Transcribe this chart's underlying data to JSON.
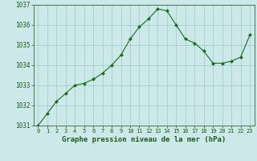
{
  "x": [
    0,
    1,
    2,
    3,
    4,
    5,
    6,
    7,
    8,
    9,
    10,
    11,
    12,
    13,
    14,
    15,
    16,
    17,
    18,
    19,
    20,
    21,
    22,
    23
  ],
  "y": [
    1031.0,
    1031.6,
    1032.2,
    1032.6,
    1033.0,
    1033.1,
    1033.3,
    1033.6,
    1034.0,
    1034.5,
    1035.3,
    1035.9,
    1036.3,
    1036.8,
    1036.7,
    1036.0,
    1035.3,
    1035.1,
    1034.7,
    1034.1,
    1034.1,
    1034.2,
    1034.4,
    1035.5
  ],
  "ylim": [
    1031,
    1037
  ],
  "xlim": [
    -0.5,
    23.5
  ],
  "yticks": [
    1031,
    1032,
    1033,
    1034,
    1035,
    1036,
    1037
  ],
  "xticks": [
    0,
    1,
    2,
    3,
    4,
    5,
    6,
    7,
    8,
    9,
    10,
    11,
    12,
    13,
    14,
    15,
    16,
    17,
    18,
    19,
    20,
    21,
    22,
    23
  ],
  "line_color": "#1a6b1a",
  "marker": "D",
  "marker_size": 2.0,
  "bg_color": "#cce8e8",
  "grid_color": "#99cccc",
  "xlabel": "Graphe pression niveau de la mer (hPa)",
  "xlabel_color": "#1a5c1a",
  "tick_color": "#1a5c1a",
  "axis_color": "#336633",
  "tick_fontsize": 5.5,
  "xlabel_fontsize": 6.5
}
